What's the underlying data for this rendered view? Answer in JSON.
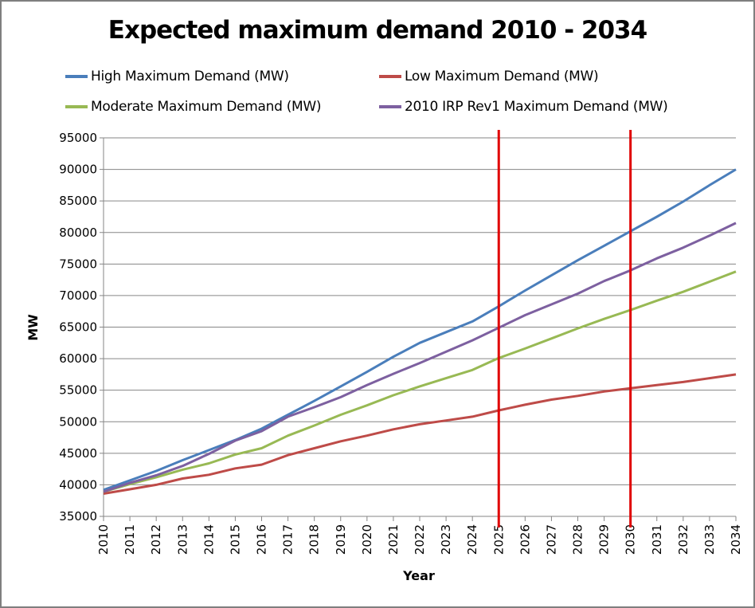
{
  "chart_data": {
    "type": "line",
    "title": "Expected maximum demand 2010 - 2034",
    "xlabel": "Year",
    "ylabel": "MW",
    "ylim": [
      35000,
      95000
    ],
    "y_ticks": [
      35000,
      40000,
      45000,
      50000,
      55000,
      60000,
      65000,
      70000,
      75000,
      80000,
      85000,
      90000,
      95000
    ],
    "grid": "horizontal",
    "legend_position": "top",
    "categories": [
      "2010",
      "2011",
      "2012",
      "2013",
      "2014",
      "2015",
      "2016",
      "2017",
      "2018",
      "2019",
      "2020",
      "2021",
      "2022",
      "2023",
      "2024",
      "2025",
      "2026",
      "2027",
      "2028",
      "2029",
      "2030",
      "2031",
      "2032",
      "2033",
      "2034"
    ],
    "series": [
      {
        "name": "High Maximum Demand (MW)",
        "color": "#4a7ebb",
        "values": [
          39200,
          40700,
          42200,
          43900,
          45500,
          47100,
          48900,
          51100,
          53300,
          55600,
          57900,
          60300,
          62500,
          64200,
          65900,
          68300,
          70800,
          73200,
          75600,
          77900,
          80200,
          82500,
          84900,
          87500,
          90000
        ]
      },
      {
        "name": "Low Maximum Demand (MW)",
        "color": "#be4b48",
        "values": [
          38600,
          39300,
          40000,
          41000,
          41600,
          42600,
          43200,
          44700,
          45800,
          46900,
          47800,
          48800,
          49600,
          50200,
          50800,
          51800,
          52700,
          53500,
          54100,
          54800,
          55300,
          55800,
          56300,
          56900,
          57500
        ]
      },
      {
        "name": "Moderate Maximum Demand (MW)",
        "color": "#98b954",
        "values": [
          38900,
          40100,
          41200,
          42400,
          43400,
          44800,
          45800,
          47800,
          49400,
          51100,
          52600,
          54200,
          55600,
          56900,
          58200,
          60100,
          61600,
          63200,
          64800,
          66300,
          67700,
          69200,
          70600,
          72200,
          73800
        ]
      },
      {
        "name": "2010 IRP Rev1 Maximum Demand (MW)",
        "color": "#7d60a0",
        "values": [
          38900,
          40300,
          41500,
          43000,
          44900,
          47000,
          48500,
          50800,
          52300,
          53900,
          55800,
          57600,
          59300,
          61100,
          62900,
          64900,
          66900,
          68600,
          70300,
          72300,
          74000,
          75900,
          77600,
          79500,
          81500
        ]
      }
    ],
    "annotations": [
      {
        "type": "vertical-line",
        "x": "2025",
        "color": "#e00000"
      },
      {
        "type": "vertical-line",
        "x": "2030",
        "color": "#e00000"
      }
    ]
  }
}
